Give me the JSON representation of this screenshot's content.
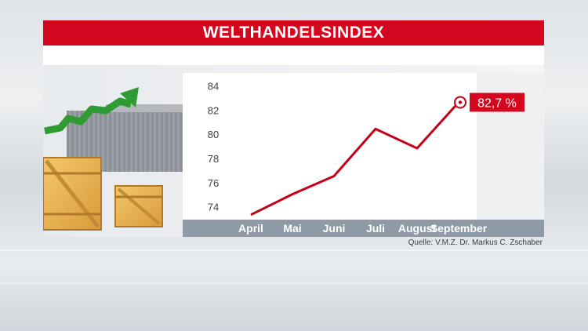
{
  "title": "WELTHANDELSINDEX",
  "source": "Quelle: V.M.Z. Dr. Markus C. Zschaber",
  "last_value_label": "82,7 %",
  "colors": {
    "accent": "#d3081f",
    "line": "#c40018",
    "axis_band": "#8e9aa5"
  },
  "illustration_icons": [
    "arrow-up-icon",
    "shipping-containers-icon",
    "wooden-crate-icon"
  ],
  "chart_data": {
    "type": "line",
    "categories": [
      "April",
      "Mai",
      "Juni",
      "Juli",
      "August",
      "September"
    ],
    "series": [
      {
        "values": [
          73.4,
          75.1,
          76.6,
          80.5,
          78.9,
          82.7
        ]
      }
    ],
    "y_ticks": [
      "84",
      "82",
      "80",
      "78",
      "76",
      "74"
    ],
    "ylim": [
      73,
      85
    ],
    "grid": false,
    "title": "",
    "xlabel": "",
    "ylabel": ""
  }
}
